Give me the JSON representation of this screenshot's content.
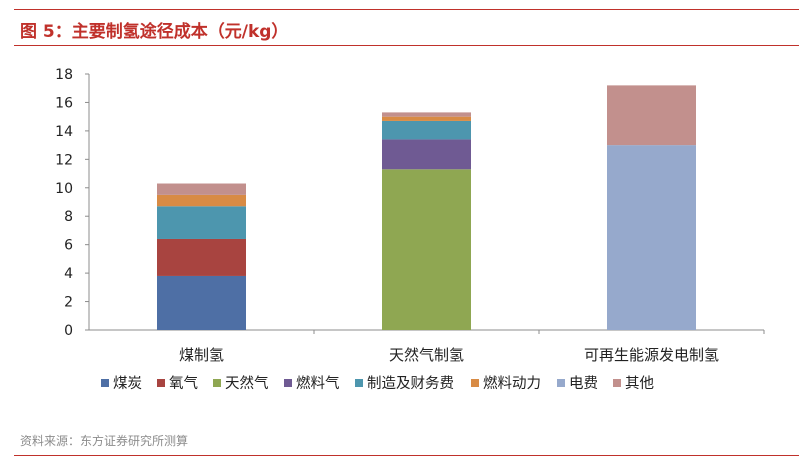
{
  "figure": {
    "title": "图 5：主要制氢途径成本（元/kg）",
    "source": "资料来源：东方证券研究所测算"
  },
  "colors": {
    "accent": "#c0312b",
    "series": [
      "#4e6fa5",
      "#a84440",
      "#8fa752",
      "#6f5a93",
      "#4d96ae",
      "#d88b45",
      "#96a9cc",
      "#c2908d"
    ]
  },
  "chart_data": {
    "type": "bar",
    "stacked": true,
    "categories": [
      "煤制氢",
      "天然气制氢",
      "可再生能源发电制氢"
    ],
    "series": [
      {
        "name": "煤炭",
        "values": [
          3.8,
          0,
          0
        ]
      },
      {
        "name": "氧气",
        "values": [
          2.6,
          0,
          0
        ]
      },
      {
        "name": "天然气",
        "values": [
          0,
          11.3,
          0
        ]
      },
      {
        "name": "燃料气",
        "values": [
          0,
          2.1,
          0
        ]
      },
      {
        "name": "制造及财务费",
        "values": [
          2.3,
          1.3,
          0
        ]
      },
      {
        "name": "燃料动力",
        "values": [
          0.8,
          0.3,
          0
        ]
      },
      {
        "name": "电费",
        "values": [
          0,
          0,
          13.0
        ]
      },
      {
        "name": "其他",
        "values": [
          0.8,
          0.3,
          4.2
        ]
      }
    ],
    "title": "",
    "xlabel": "",
    "ylabel": "",
    "ylim": [
      0,
      18
    ],
    "yticks": [
      0,
      2,
      4,
      6,
      8,
      10,
      12,
      14,
      16,
      18
    ],
    "grid": false,
    "legend_position": "bottom"
  }
}
